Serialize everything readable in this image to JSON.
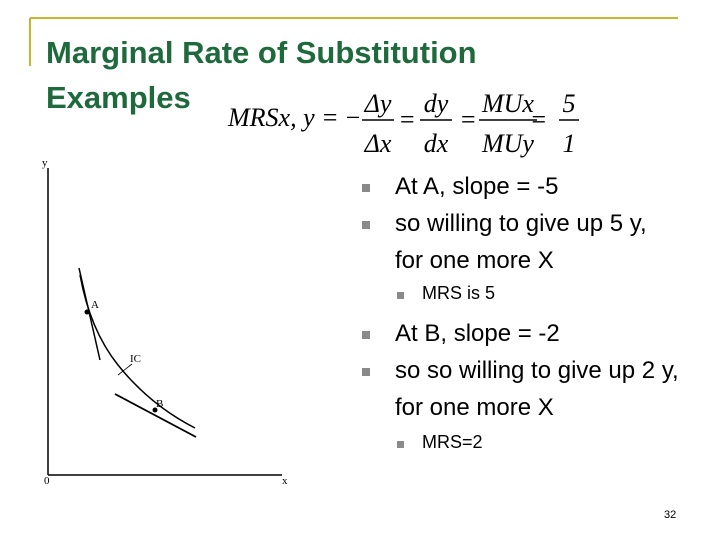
{
  "title": "Marginal Rate of Substitution Examples",
  "formula": {
    "lhs": "MRSx, y =",
    "minus": "−",
    "equals": "=",
    "fractions": [
      {
        "num": "Δy",
        "den": "Δx"
      },
      {
        "num": "dy",
        "den": "dx"
      },
      {
        "num": "MUx",
        "den": "MUy"
      },
      {
        "num": "5",
        "den": "1"
      }
    ]
  },
  "diagram": {
    "y_axis": "y",
    "x_axis": "x",
    "origin": "0",
    "point_a": "A",
    "point_b": "B",
    "curve": "IC"
  },
  "bullets": [
    {
      "text": "At A, slope = -5",
      "level": 1
    },
    {
      "text": "so willing to give up 5 y, for one more X",
      "level": 1
    },
    {
      "text": "MRS is 5",
      "level": 2
    },
    {
      "text": "At B, slope = -2",
      "level": 1
    },
    {
      "text": "so so willing to give up 2 y, for one more X",
      "level": 1
    },
    {
      "text": "MRS=2",
      "level": 2
    }
  ],
  "page_number": "32"
}
